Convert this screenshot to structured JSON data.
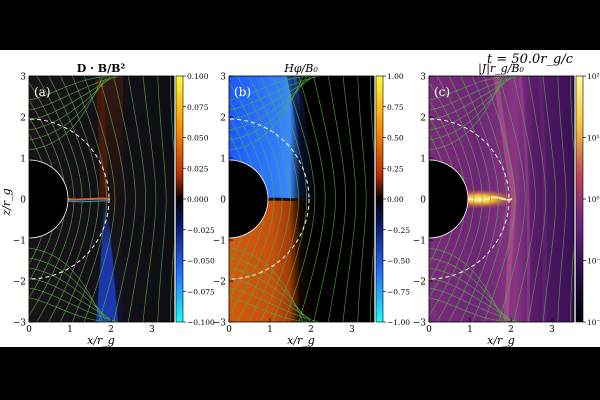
{
  "figure": {
    "time_label": "t = 50.0r_g/c"
  },
  "axes": {
    "ylabel": "z/r_g",
    "xlabel": "x/r_g",
    "y_ticks": [
      "3",
      "2",
      "1",
      "0",
      "−1",
      "−2",
      "−3"
    ],
    "x_ticks": [
      "0",
      "1",
      "2",
      "3"
    ]
  },
  "panels": [
    {
      "title": "D · B/B²",
      "tag": "(a)",
      "colormap": "diverging-cyan-blue-black-red-yellow",
      "colorbar_ticks": [
        "0.100",
        "0.075",
        "0.050",
        "0.025",
        "0.000",
        "−0.025",
        "−0.050",
        "−0.075",
        "−0.100"
      ]
    },
    {
      "title": "Hφ/B₀",
      "tag": "(b)",
      "colormap": "diverging-cyan-blue-black-red-yellow",
      "colorbar_ticks": [
        "1.00",
        "0.75",
        "0.50",
        "0.25",
        "0.00",
        "−0.25",
        "−0.50",
        "−0.75",
        "−1.00"
      ]
    },
    {
      "title": "|J|r_g/B₀",
      "tag": "(c)",
      "colormap": "inferno-purple",
      "colorbar_ticks": [
        "10²",
        "10¹",
        "10⁰",
        "10⁻¹",
        "10⁻²"
      ]
    }
  ],
  "colors": {
    "field_lines": "#55aa44",
    "horizon_dashed": "#ffffff",
    "black_hole": "#000000"
  }
}
